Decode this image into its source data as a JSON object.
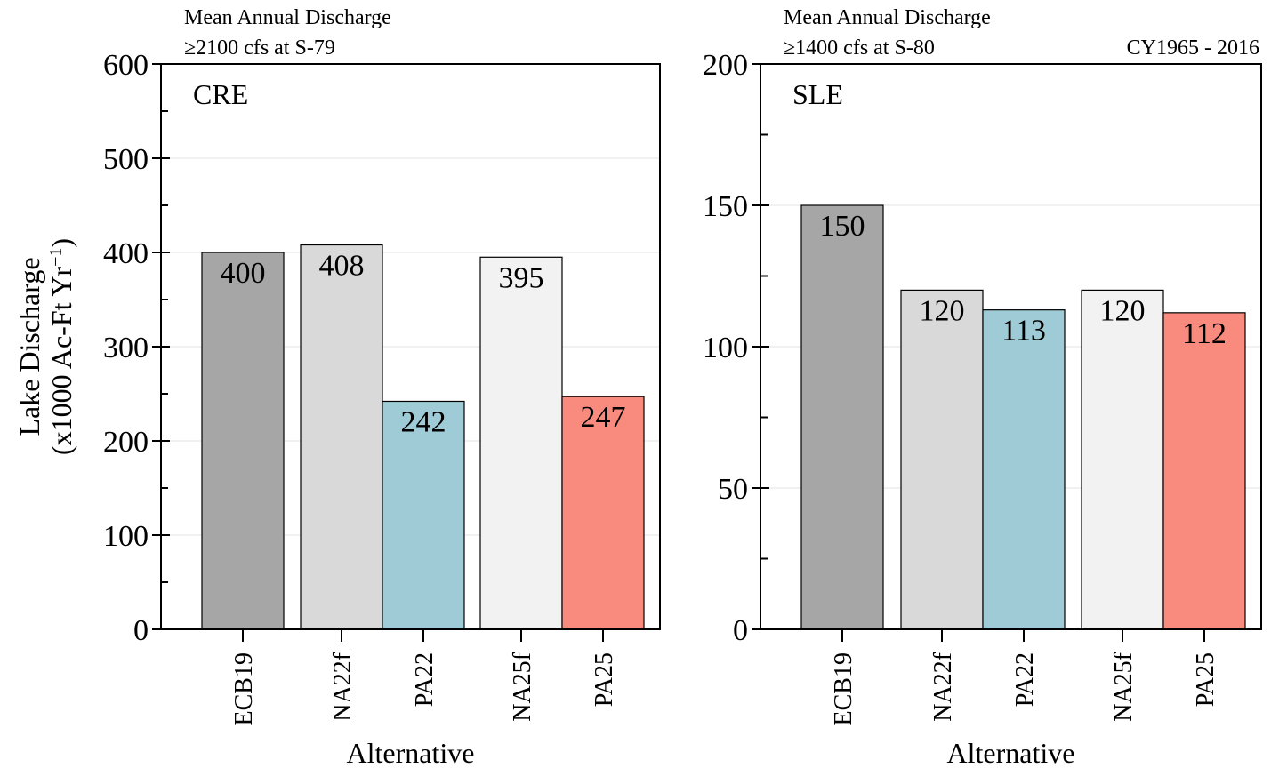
{
  "figure": {
    "ylabel_line1": "Lake Discharge",
    "ylabel_line2": "(x1000 Ac-Ft Yr",
    "ylabel_sup": "−1",
    "ylabel_close": ")",
    "period": "CY1965 - 2016"
  },
  "chart_data": [
    {
      "type": "bar",
      "title": "Mean Annual Discharge",
      "subtitle": "≥2100 cfs at S-79",
      "panel_label": "CRE",
      "xlabel": "Alternative",
      "ylabel": "Lake Discharge (x1000 Ac-Ft Yr−1)",
      "categories": [
        "ECB19",
        "NA22f",
        "PA22",
        "NA25f",
        "PA25"
      ],
      "values": [
        400,
        408,
        242,
        395,
        247
      ],
      "value_labels": [
        "400",
        "408",
        "242",
        "395",
        "247"
      ],
      "colors": [
        "#a6a6a6",
        "#d9d9d9",
        "#9fcbd6",
        "#f2f2f2",
        "#f88b7d"
      ],
      "ylim": [
        0,
        600
      ],
      "yticks": [
        0,
        100,
        200,
        300,
        400,
        500,
        600
      ],
      "grid": true
    },
    {
      "type": "bar",
      "title": "Mean Annual Discharge",
      "subtitle": "≥1400 cfs at S-80",
      "panel_label": "SLE",
      "xlabel": "Alternative",
      "categories": [
        "ECB19",
        "NA22f",
        "PA22",
        "NA25f",
        "PA25"
      ],
      "values": [
        150,
        120,
        113,
        120,
        112
      ],
      "value_labels": [
        "150",
        "120",
        "113",
        "120",
        "112"
      ],
      "colors": [
        "#a6a6a6",
        "#d9d9d9",
        "#9fcbd6",
        "#f2f2f2",
        "#f88b7d"
      ],
      "ylim": [
        0,
        200
      ],
      "yticks": [
        0,
        50,
        100,
        150,
        200
      ],
      "grid": true
    }
  ]
}
